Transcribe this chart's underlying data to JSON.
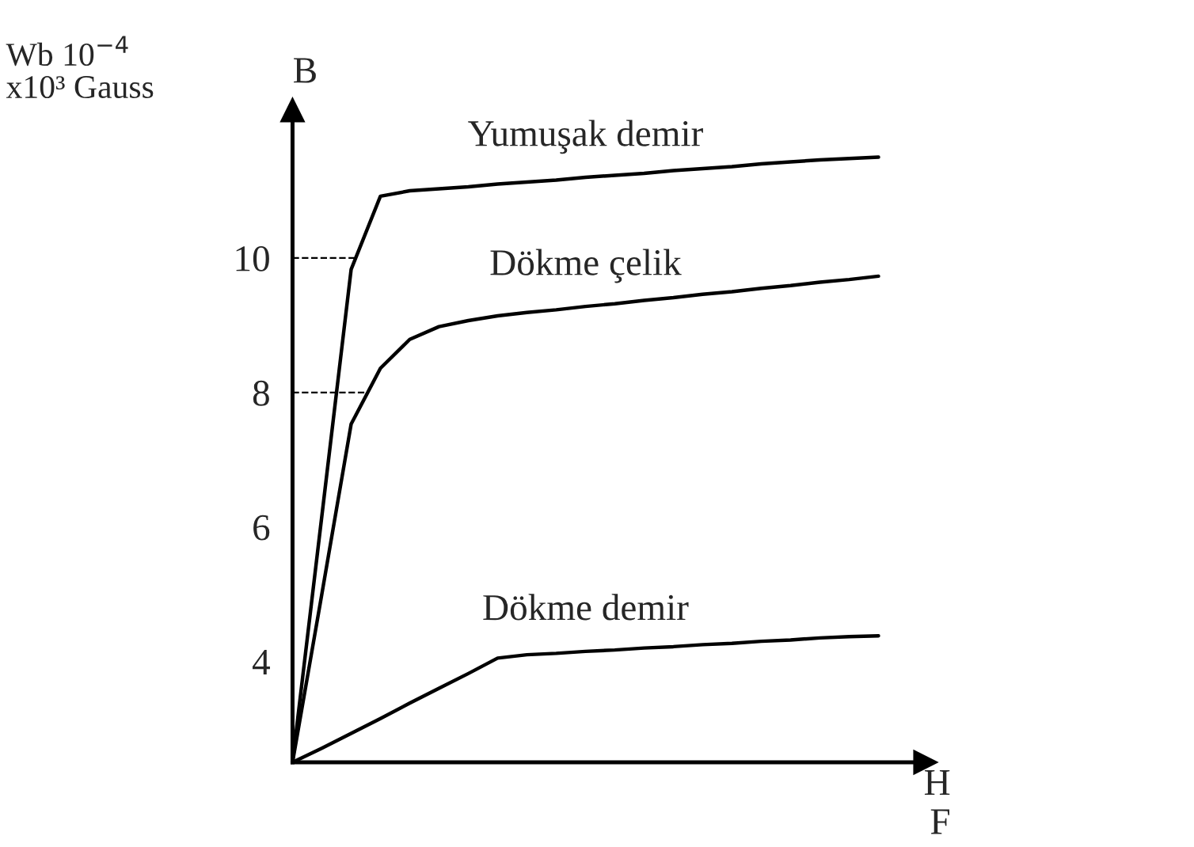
{
  "chart_data": {
    "type": "line",
    "xlabel": "H\nF",
    "ylabel": "B",
    "annotations": [
      "Wb 10$^{−4}$\nx10³ Gauss"
    ],
    "categories": [
      null,
      null,
      null,
      null,
      null,
      null,
      null,
      null,
      null,
      null,
      null,
      null,
      null,
      null,
      null,
      null,
      null,
      null,
      null,
      null,
      null
    ],
    "series": [
      {
        "name": "Yumuşak demir",
        "color": "#000000",
        "values": [
          2.5,
          6.16,
          9.83,
          10.92,
          11.0,
          11.03,
          11.06,
          11.1,
          11.13,
          11.16,
          11.2,
          11.23,
          11.26,
          11.3,
          11.33,
          11.36,
          11.4,
          11.43,
          11.46,
          11.48,
          11.5
        ]
      },
      {
        "name": "Dökme çelik",
        "color": "#000000",
        "values": [
          2.5,
          5.0,
          7.53,
          8.36,
          8.79,
          8.98,
          9.07,
          9.14,
          9.19,
          9.23,
          9.28,
          9.32,
          9.37,
          9.41,
          9.46,
          9.5,
          9.55,
          9.59,
          9.64,
          9.68,
          9.73
        ]
      },
      {
        "name": "Dökme demir",
        "color": "#000000",
        "values": [
          2.5,
          2.71,
          2.93,
          3.15,
          3.38,
          3.6,
          3.82,
          4.05,
          4.1,
          4.12,
          4.15,
          4.17,
          4.2,
          4.22,
          4.25,
          4.27,
          4.3,
          4.32,
          4.35,
          4.37,
          4.38
        ]
      }
    ],
    "ylim": [
      2.5,
      12.2
    ],
    "yticks": [
      4,
      6,
      8,
      10
    ],
    "ref_lines": [
      {
        "axis": "y",
        "value": 10,
        "line_style": "dashed",
        "color": "#000000"
      },
      {
        "axis": "y",
        "value": 8,
        "line_style": "dashed",
        "color": "#000000"
      }
    ],
    "tick_labels": "y",
    "grid": false,
    "legend": false,
    "marker": "none",
    "line_style": "solid"
  }
}
